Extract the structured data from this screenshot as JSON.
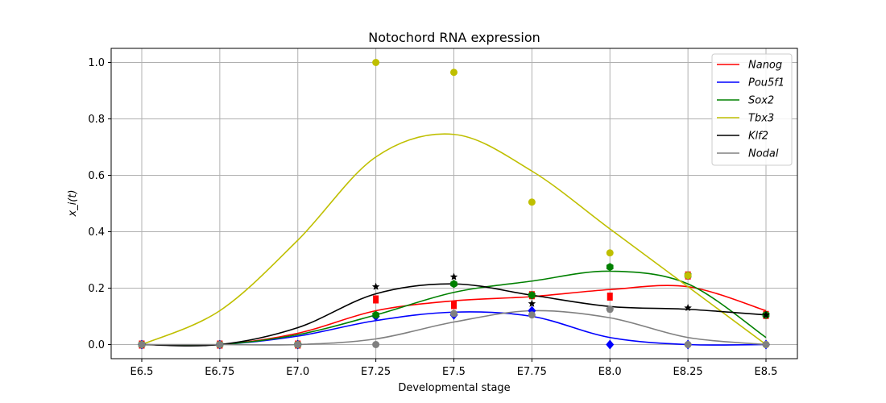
{
  "chart_data": {
    "type": "line",
    "title": "Notochord RNA expression",
    "xlabel": "Developmental stage",
    "ylabel": "x_i(t)",
    "x_categories": [
      "E6.5",
      "E6.75",
      "E7.0",
      "E7.25",
      "E7.5",
      "E7.75",
      "E8.0",
      "E8.25",
      "E8.5"
    ],
    "y_ticks": [
      "0.0",
      "0.2",
      "0.4",
      "0.6",
      "0.8",
      "1.0"
    ],
    "ylim": [
      -0.05,
      1.05
    ],
    "grid": true,
    "legend_position": "top-right",
    "series": [
      {
        "name": "Nanog",
        "color": "#ff0000",
        "marker": "square",
        "points": [
          0.0,
          0.0,
          0.0,
          0.16,
          0.14,
          0.175,
          0.17,
          0.245,
          0.105
        ],
        "curve": [
          0.0,
          0.0,
          0.04,
          0.12,
          0.155,
          0.17,
          0.195,
          0.205,
          0.12
        ]
      },
      {
        "name": "Pou5f1",
        "color": "#0000ff",
        "marker": "diamond",
        "points": [
          0.0,
          0.0,
          0.0,
          0.1,
          0.105,
          0.12,
          0.0,
          0.0,
          0.0
        ],
        "curve": [
          0.0,
          0.0,
          0.03,
          0.085,
          0.115,
          0.1,
          0.025,
          0.0,
          0.0
        ]
      },
      {
        "name": "Sox2",
        "color": "#008000",
        "marker": "hexagon",
        "points": [
          0.0,
          0.0,
          0.0,
          0.105,
          0.215,
          0.175,
          0.275,
          0.245,
          0.105
        ],
        "curve": [
          0.0,
          0.0,
          0.035,
          0.105,
          0.185,
          0.225,
          0.26,
          0.215,
          0.025
        ]
      },
      {
        "name": "Tbx3",
        "color": "#bfbf00",
        "marker": "circle",
        "points": [
          0.0,
          0.0,
          0.0,
          1.0,
          0.965,
          0.505,
          0.325,
          0.245,
          0.0
        ],
        "curve": [
          0.0,
          0.12,
          0.37,
          0.665,
          0.745,
          0.615,
          0.41,
          0.205,
          0.0
        ]
      },
      {
        "name": "Klf2",
        "color": "#000000",
        "marker": "star",
        "points": [
          0.0,
          0.0,
          0.0,
          0.205,
          0.24,
          0.145,
          0.125,
          0.13,
          0.105
        ],
        "curve": [
          0.0,
          0.0,
          0.06,
          0.18,
          0.215,
          0.175,
          0.135,
          0.125,
          0.105
        ]
      },
      {
        "name": "Nodal",
        "color": "#808080",
        "marker": "circle",
        "points": [
          0.0,
          0.0,
          0.0,
          0.0,
          0.11,
          0.105,
          0.125,
          0.0,
          0.0
        ],
        "curve": [
          0.0,
          0.0,
          0.0,
          0.02,
          0.08,
          0.12,
          0.095,
          0.025,
          0.0
        ]
      }
    ]
  }
}
